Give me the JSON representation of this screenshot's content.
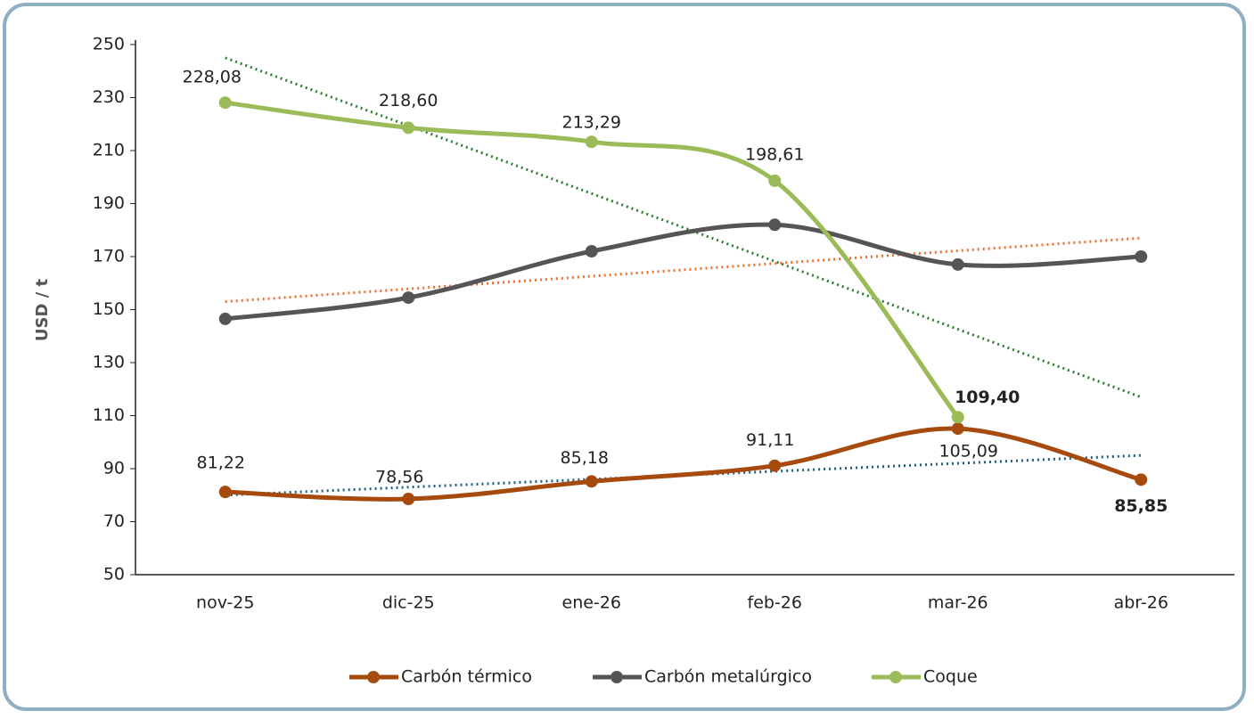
{
  "chart_data": {
    "type": "line",
    "y_label": "USD / t",
    "categories": [
      "nov-25",
      "dic-25",
      "ene-26",
      "feb-26",
      "mar-26",
      "abr-26"
    ],
    "series": [
      {
        "name": "Carbón térmico",
        "color": "#a64a0e",
        "values": [
          81.22,
          78.56,
          85.18,
          91.11,
          105.09,
          85.85
        ],
        "value_labels": [
          "81,22",
          "78,56",
          "85,18",
          "91,11",
          "105,09",
          "85,85"
        ],
        "trend": {
          "color": "#1f6080",
          "values": [
            80,
            95
          ]
        }
      },
      {
        "name": "Carbón metalúrgico",
        "color": "#555555",
        "values": [
          146.5,
          154.5,
          172,
          182,
          167,
          170
        ],
        "trend": {
          "color": "#e97132",
          "values": [
            153,
            177
          ]
        }
      },
      {
        "name": "Coque",
        "color": "#9bbb59",
        "values": [
          228.08,
          218.6,
          213.29,
          198.61,
          109.4,
          null
        ],
        "value_labels": [
          "228,08",
          "218,60",
          "213,29",
          "198,61",
          "109,40",
          null
        ],
        "trend": {
          "color": "#2e7d32",
          "values": [
            245,
            117
          ]
        }
      }
    ],
    "ylim": [
      50,
      250
    ],
    "yticks": [
      50,
      70,
      90,
      110,
      130,
      150,
      170,
      190,
      210,
      230,
      250
    ],
    "grid": false,
    "legend": "bottom"
  }
}
